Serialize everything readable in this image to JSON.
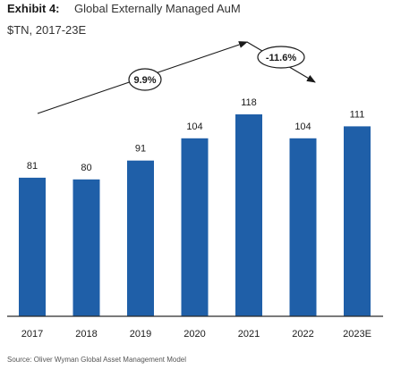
{
  "header": {
    "exhibit_label": "Exhibit 4:",
    "title": "Global Externally Managed AuM",
    "subtitle": "$TN, 2017-23E"
  },
  "source": "Source: Oliver Wyman Global Asset Management Model",
  "annotations": {
    "growth_up": "9.9%",
    "growth_down": "-11.6%"
  },
  "colors": {
    "bar": "#1f5fa8",
    "text": "#1a1a1a",
    "axis": "#2a2a2a",
    "source_text": "#555555"
  },
  "chart_data": {
    "type": "bar",
    "title": "Global Externally Managed AuM",
    "subtitle": "$TN, 2017-23E",
    "xlabel": "",
    "ylabel": "",
    "categories": [
      "2017",
      "2018",
      "2019",
      "2020",
      "2021",
      "2022",
      "2023E"
    ],
    "values": [
      81,
      80,
      91,
      104,
      118,
      104,
      111
    ],
    "data_labels": [
      "81",
      "80",
      "91",
      "104",
      "118",
      "104",
      "111"
    ],
    "ylim": [
      0,
      130
    ],
    "grid": false,
    "legend": "none",
    "annotations": [
      "9.9%",
      "-11.6%"
    ]
  }
}
